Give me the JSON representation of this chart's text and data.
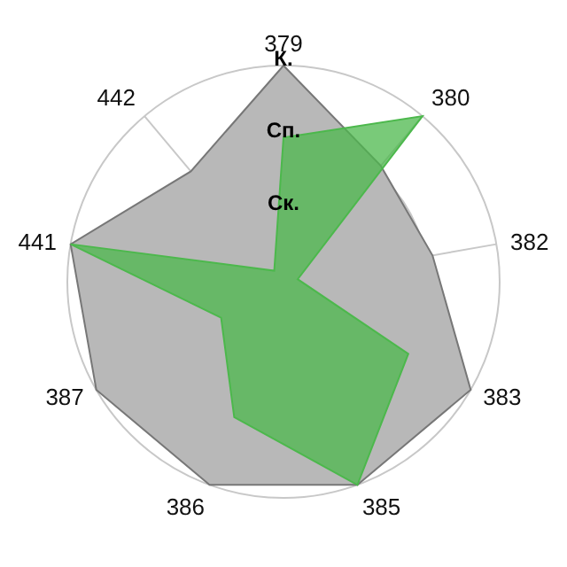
{
  "chart_data": {
    "type": "radar",
    "categories": [
      "379",
      "380",
      "382",
      "383",
      "385",
      "386",
      "387",
      "441",
      "442"
    ],
    "series": [
      {
        "color": "#b8b8b8",
        "values": [
          3,
          2.1,
          2.1,
          3,
          3,
          3,
          3,
          3,
          2
        ]
      },
      {
        "color": "#4cb84c",
        "values": [
          2,
          3,
          0.2,
          2,
          3,
          2,
          1,
          3,
          0.2
        ]
      }
    ],
    "ylim": [
      0,
      3
    ],
    "yticks": [
      {
        "value": 1,
        "label": "Ск."
      },
      {
        "value": 2,
        "label": "Сп."
      },
      {
        "value": 3,
        "label": "К."
      }
    ],
    "grid": true
  }
}
